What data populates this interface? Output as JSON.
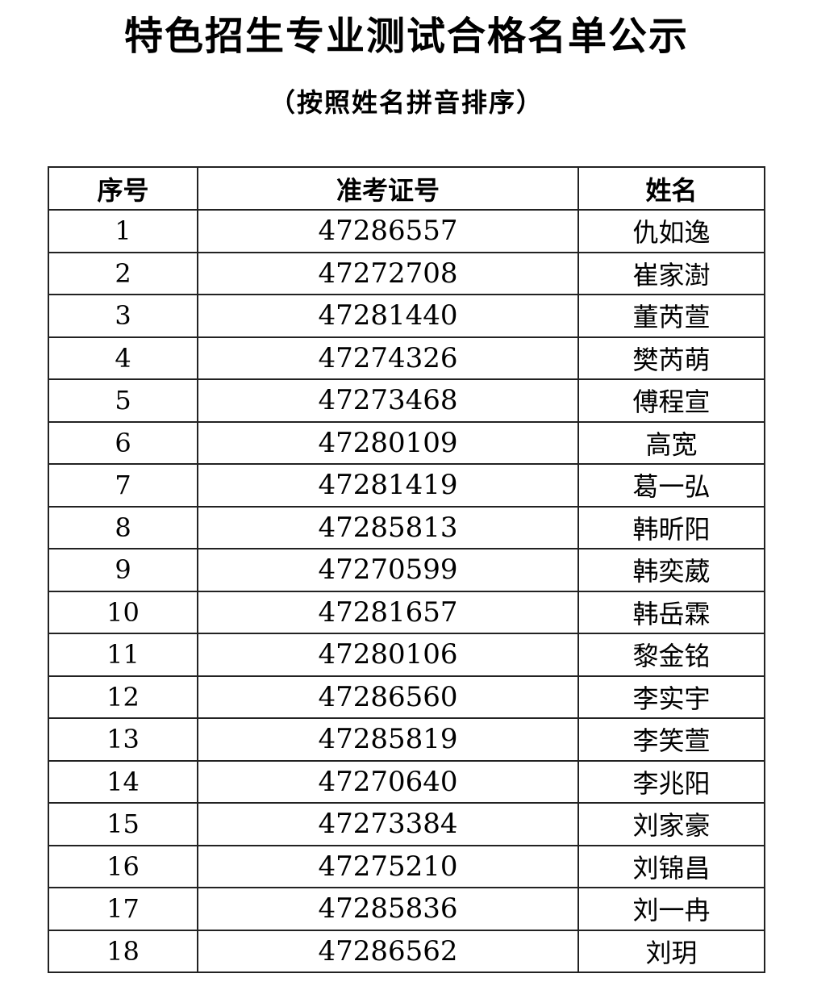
{
  "title": "特色招生专业测试合格名单公示",
  "subtitle": "（按照姓名拼音排序）",
  "table": {
    "headers": [
      "序号",
      "准考证号",
      "姓名"
    ],
    "rows": [
      [
        "1",
        "47286557",
        "仇如逸"
      ],
      [
        "2",
        "47272708",
        "崔家澍"
      ],
      [
        "3",
        "47281440",
        "董芮萱"
      ],
      [
        "4",
        "47274326",
        "樊芮萌"
      ],
      [
        "5",
        "47273468",
        "傅程宣"
      ],
      [
        "6",
        "47280109",
        "高宽"
      ],
      [
        "7",
        "47281419",
        "葛一弘"
      ],
      [
        "8",
        "47285813",
        "韩昕阳"
      ],
      [
        "9",
        "47270599",
        "韩奕葳"
      ],
      [
        "10",
        "47281657",
        "韩岳霖"
      ],
      [
        "11",
        "47280106",
        "黎金铭"
      ],
      [
        "12",
        "47286560",
        "李实宇"
      ],
      [
        "13",
        "47285819",
        "李笑萱"
      ],
      [
        "14",
        "47270640",
        "李兆阳"
      ],
      [
        "15",
        "47273384",
        "刘家豪"
      ],
      [
        "16",
        "47275210",
        "刘锦昌"
      ],
      [
        "17",
        "47285836",
        "刘一冉"
      ],
      [
        "18",
        "47286562",
        "刘玥"
      ]
    ]
  }
}
